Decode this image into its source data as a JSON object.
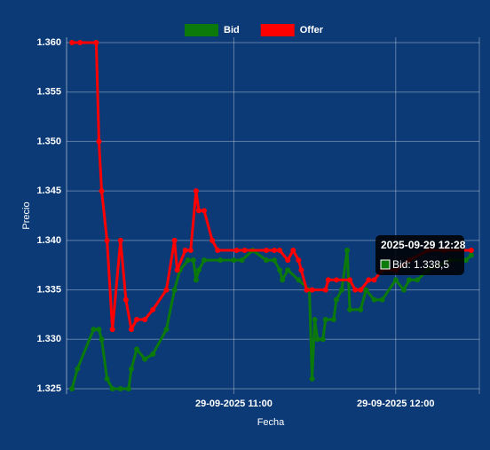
{
  "chart_data": {
    "type": "line",
    "x_label": "Fecha",
    "y_label": "Precio",
    "xlim": [
      "29-09-2025 09:58",
      "29-09-2025 12:31"
    ],
    "xticks": [
      "29-09-2025 11:00",
      "29-09-2025 12:00"
    ],
    "ylim": [
      1.325,
      1.36
    ],
    "yticks": [
      {
        "value": 1.325,
        "label": "1.325"
      },
      {
        "value": 1.33,
        "label": "1.330"
      },
      {
        "value": 1.335,
        "label": "1.335"
      },
      {
        "value": 1.34,
        "label": "1.340"
      },
      {
        "value": 1.345,
        "label": "1.345"
      },
      {
        "value": 1.35,
        "label": "1.350"
      },
      {
        "value": 1.355,
        "label": "1.355"
      },
      {
        "value": 1.36,
        "label": "1.360"
      }
    ],
    "grid": true,
    "legend": "top",
    "series": [
      {
        "name": "Bid",
        "color": "#0b7a0b",
        "x": [
          "29-09-2025 10:00",
          "29-09-2025 10:02",
          "29-09-2025 10:08",
          "29-09-2025 10:10",
          "29-09-2025 10:11",
          "29-09-2025 10:13",
          "29-09-2025 10:15",
          "29-09-2025 10:18",
          "29-09-2025 10:21",
          "29-09-2025 10:22",
          "29-09-2025 10:24",
          "29-09-2025 10:27",
          "29-09-2025 10:30",
          "29-09-2025 10:35",
          "29-09-2025 10:38",
          "29-09-2025 10:40",
          "29-09-2025 10:43",
          "29-09-2025 10:45",
          "29-09-2025 10:46",
          "29-09-2025 10:47",
          "29-09-2025 10:49",
          "29-09-2025 10:55",
          "29-09-2025 11:00",
          "29-09-2025 11:03",
          "29-09-2025 11:07",
          "29-09-2025 11:12",
          "29-09-2025 11:15",
          "29-09-2025 11:17",
          "29-09-2025 11:18",
          "29-09-2025 11:20",
          "29-09-2025 11:24",
          "29-09-2025 11:28",
          "29-09-2025 11:29",
          "29-09-2025 11:30",
          "29-09-2025 11:31",
          "29-09-2025 11:33",
          "29-09-2025 11:34",
          "29-09-2025 11:37",
          "29-09-2025 11:38",
          "29-09-2025 11:40",
          "29-09-2025 11:42",
          "29-09-2025 11:43",
          "29-09-2025 11:47",
          "29-09-2025 11:49",
          "29-09-2025 11:52",
          "29-09-2025 11:55",
          "29-09-2025 12:00",
          "29-09-2025 12:03",
          "29-09-2025 12:05",
          "29-09-2025 12:08",
          "29-09-2025 12:12",
          "29-09-2025 12:20",
          "29-09-2025 12:26",
          "29-09-2025 12:28"
        ],
        "values": [
          1.325,
          1.327,
          1.331,
          1.331,
          1.33,
          1.326,
          1.325,
          1.325,
          1.325,
          1.327,
          1.329,
          1.328,
          1.3285,
          1.331,
          1.335,
          1.337,
          1.338,
          1.338,
          1.336,
          1.337,
          1.338,
          1.338,
          1.338,
          1.338,
          1.339,
          1.338,
          1.338,
          1.337,
          1.336,
          1.337,
          1.336,
          1.335,
          1.326,
          1.332,
          1.33,
          1.33,
          1.332,
          1.332,
          1.334,
          1.335,
          1.339,
          1.333,
          1.333,
          1.335,
          1.334,
          1.334,
          1.336,
          1.335,
          1.336,
          1.336,
          1.337,
          1.338,
          1.338,
          1.3385
        ]
      },
      {
        "name": "Offer",
        "color": "#ff0000",
        "x": [
          "29-09-2025 10:00",
          "29-09-2025 10:03",
          "29-09-2025 10:09",
          "29-09-2025 10:10",
          "29-09-2025 10:11",
          "29-09-2025 10:13",
          "29-09-2025 10:15",
          "29-09-2025 10:18",
          "29-09-2025 10:20",
          "29-09-2025 10:22",
          "29-09-2025 10:24",
          "29-09-2025 10:27",
          "29-09-2025 10:30",
          "29-09-2025 10:35",
          "29-09-2025 10:38",
          "29-09-2025 10:39",
          "29-09-2025 10:42",
          "29-09-2025 10:44",
          "29-09-2025 10:46",
          "29-09-2025 10:47",
          "29-09-2025 10:49",
          "29-09-2025 10:52",
          "29-09-2025 10:54",
          "29-09-2025 11:01",
          "29-09-2025 11:04",
          "29-09-2025 11:12",
          "29-09-2025 11:15",
          "29-09-2025 11:17",
          "29-09-2025 11:20",
          "29-09-2025 11:22",
          "29-09-2025 11:24",
          "29-09-2025 11:25",
          "29-09-2025 11:27",
          "29-09-2025 11:29",
          "29-09-2025 11:34",
          "29-09-2025 11:35",
          "29-09-2025 11:38",
          "29-09-2025 11:43",
          "29-09-2025 11:45",
          "29-09-2025 11:47",
          "29-09-2025 11:50",
          "29-09-2025 11:52",
          "29-09-2025 11:55",
          "29-09-2025 12:00",
          "29-09-2025 12:05",
          "29-09-2025 12:12",
          "29-09-2025 12:18",
          "29-09-2025 12:28"
        ],
        "values": [
          1.36,
          1.36,
          1.36,
          1.35,
          1.345,
          1.34,
          1.331,
          1.34,
          1.334,
          1.331,
          1.332,
          1.332,
          1.333,
          1.335,
          1.34,
          1.337,
          1.339,
          1.339,
          1.345,
          1.343,
          1.343,
          1.34,
          1.339,
          1.339,
          1.339,
          1.339,
          1.339,
          1.339,
          1.338,
          1.339,
          1.338,
          1.337,
          1.335,
          1.335,
          1.335,
          1.336,
          1.336,
          1.336,
          1.335,
          1.335,
          1.336,
          1.336,
          1.337,
          1.337,
          1.338,
          1.339,
          1.339,
          1.339
        ]
      }
    ],
    "tooltip": {
      "title": "2025-09-29 12:28",
      "label": "Bid: 1.338,5"
    }
  }
}
